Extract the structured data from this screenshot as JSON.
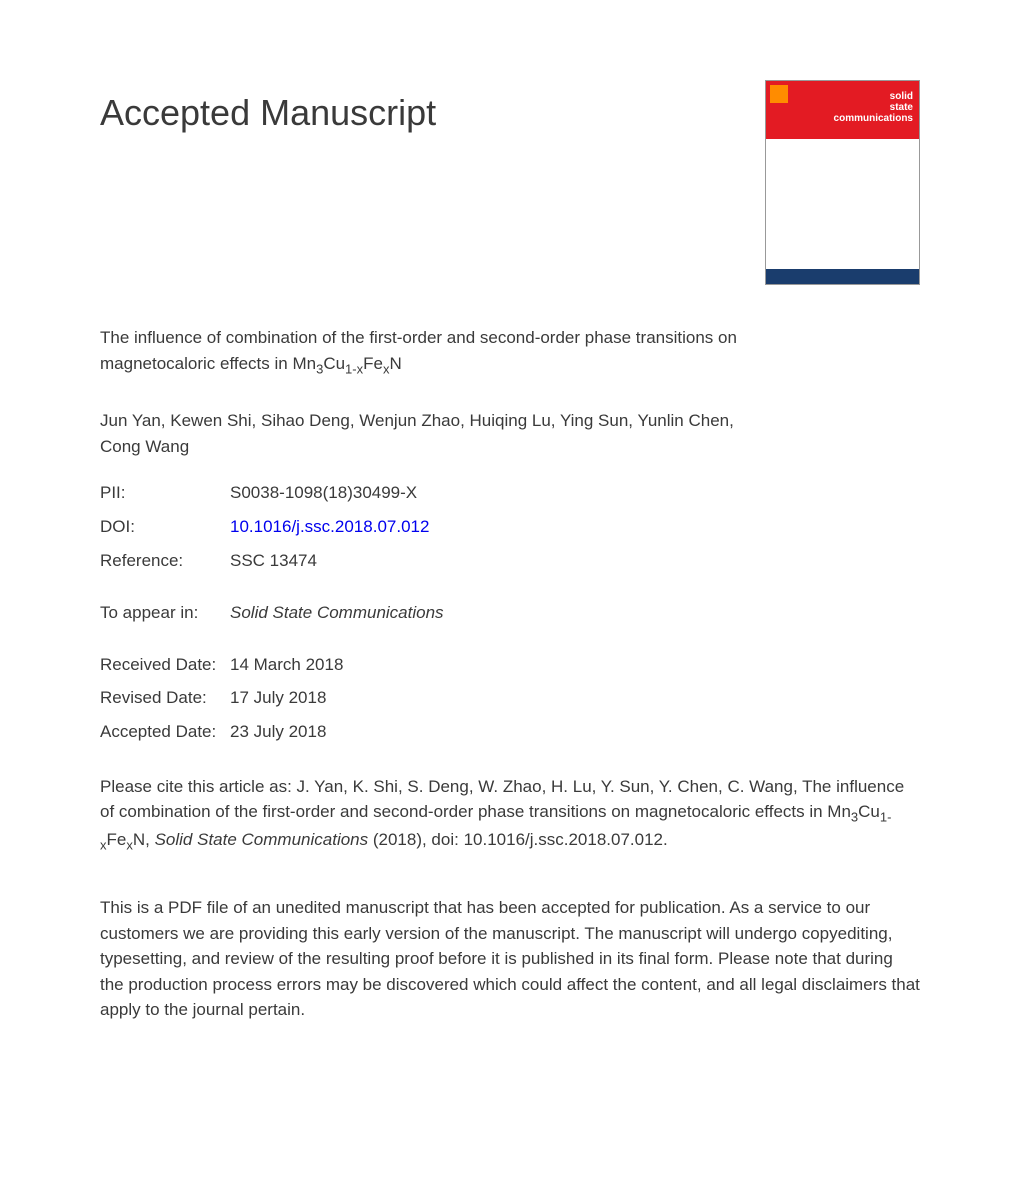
{
  "heading": "Accepted Manuscript",
  "journal_cover": {
    "title_line1": "solid",
    "title_line2": "state",
    "title_line3": "communications",
    "top_color": "#e31b23",
    "bottom_color": "#1a3d6d",
    "logo_color": "#ff8c00"
  },
  "article": {
    "title_part1": "The influence of combination of the first-order and second-order phase transitions on magnetocaloric effects in Mn",
    "title_sub1": "3",
    "title_part2": "Cu",
    "title_sub2": "1-x",
    "title_part3": "Fe",
    "title_sub3": "x",
    "title_part4": "N"
  },
  "authors": "Jun Yan, Kewen Shi, Sihao Deng, Wenjun Zhao, Huiqing Lu, Ying Sun, Yunlin Chen, Cong Wang",
  "meta": {
    "pii_label": "PII:",
    "pii_value": "S0038-1098(18)30499-X",
    "doi_label": "DOI:",
    "doi_value": "10.1016/j.ssc.2018.07.012",
    "reference_label": "Reference:",
    "reference_value": "SSC 13474",
    "appear_label": "To appear in:",
    "appear_value": "Solid State Communications",
    "received_label": "Received Date:",
    "received_value": "14 March 2018",
    "revised_label": "Revised Date:",
    "revised_value": "17 July 2018",
    "accepted_label": "Accepted Date:",
    "accepted_value": "23 July 2018"
  },
  "citation": {
    "part1": "Please cite this article as: J. Yan, K. Shi, S. Deng, W. Zhao, H. Lu, Y. Sun, Y. Chen, C. Wang, The influence of combination of the first-order and second-order phase transitions on magnetocaloric effects in Mn",
    "sub1": "3",
    "part2": "Cu",
    "sub2": "1-x",
    "part3": "Fe",
    "sub3": "x",
    "part4": "N, ",
    "journal": "Solid State Communications",
    "part5": " (2018), doi: 10.1016/j.ssc.2018.07.012."
  },
  "disclaimer": "This is a PDF file of an unedited manuscript that has been accepted for publication. As a service to our customers we are providing this early version of the manuscript. The manuscript will undergo copyediting, typesetting, and review of the resulting proof before it is published in its final form. Please note that during the production process errors may be discovered which could affect the content, and all legal disclaimers that apply to the journal pertain."
}
